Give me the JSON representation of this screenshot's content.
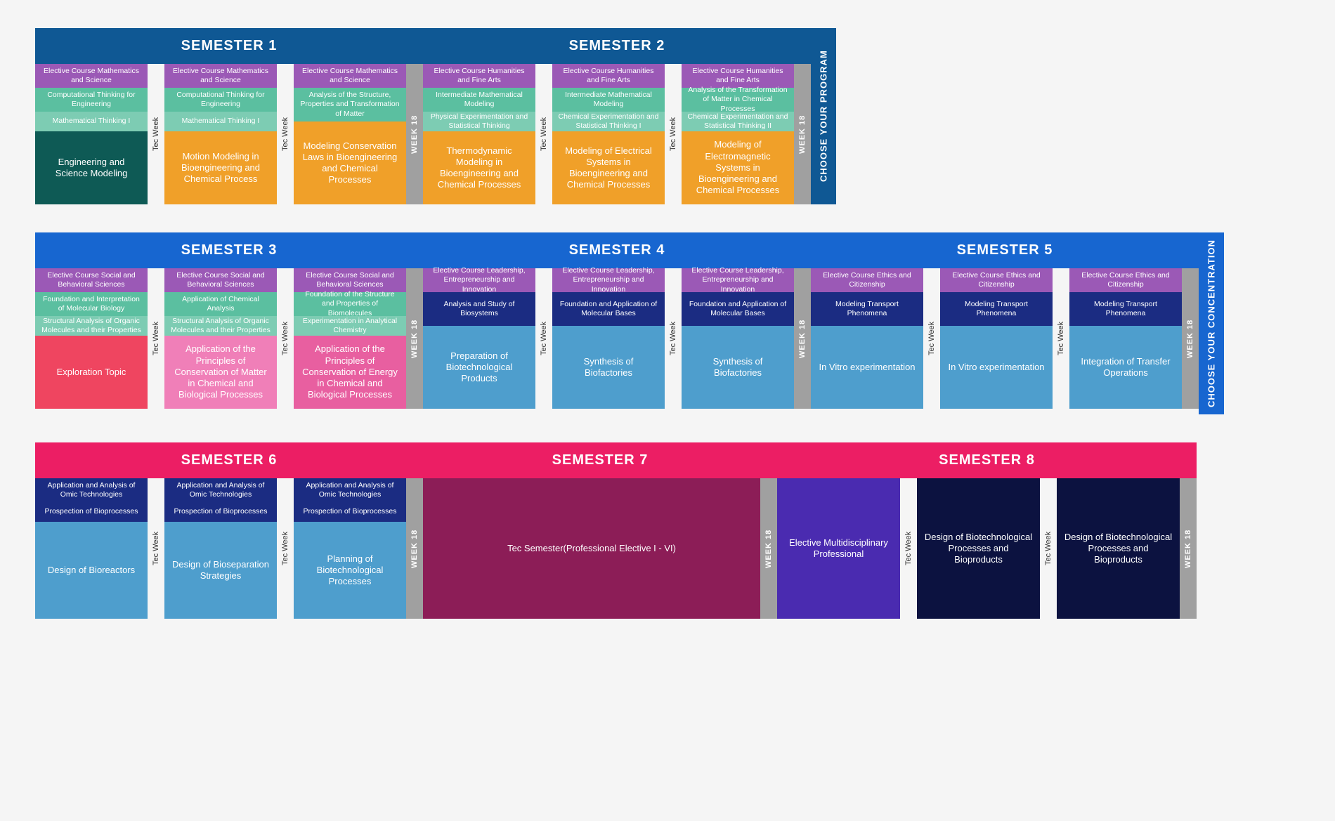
{
  "labels": {
    "tec_week": "Tec Week",
    "week18": "WEEK 18"
  },
  "colors": {
    "bg": "#f5f5f5",
    "grey_week18": "#a0a0a0",
    "row1_header": "#0f5894",
    "row1_side": "#0f5894",
    "row2_header": "#1766d0",
    "row2_side": "#1766d0",
    "row3_header": "#ec1e64",
    "purple": "#9b59b6",
    "teal": "#5bbfa0",
    "teal_light": "#7dccb3",
    "dark_teal": "#0e5a55",
    "orange": "#f0a029",
    "navy": "#1b2c82",
    "skyblue": "#4e9ecd",
    "pink_dark": "#e85fa0",
    "pink_light": "#f07fb8",
    "red": "#ef4560",
    "maroon": "#8c1d57",
    "indigo": "#4a2bb0",
    "navy_dark": "#0c1240"
  },
  "row1": {
    "side": "CHOOSE YOUR PROGRAM",
    "semesters": [
      {
        "title": "SEMESTER 1",
        "periods": [
          {
            "blocks": [
              {
                "t": "Elective Course Mathematics and Science",
                "c": "purple",
                "h": "med"
              },
              {
                "t": "Computational Thinking for Engineering",
                "c": "teal",
                "h": "med"
              },
              {
                "t": "Mathematical Thinking I",
                "c": "teal_light",
                "h": "sm"
              },
              {
                "t": "Engineering and Science Modeling",
                "c": "dark_teal",
                "h": "big"
              }
            ]
          },
          {
            "blocks": [
              {
                "t": "Elective Course Mathematics and Science",
                "c": "purple",
                "h": "med"
              },
              {
                "t": "Computational Thinking for Engineering",
                "c": "teal",
                "h": "med"
              },
              {
                "t": "Mathematical Thinking I",
                "c": "teal_light",
                "h": "sm"
              },
              {
                "t": "Motion Modeling in Bioengineering and Chemical Process",
                "c": "orange",
                "h": "big"
              }
            ]
          },
          {
            "blocks": [
              {
                "t": "Elective Course Mathematics and Science",
                "c": "purple",
                "h": "med"
              },
              {
                "t": "Analysis of the Structure, Properties and Transformation of Matter",
                "c": "teal",
                "h": "med2"
              },
              {
                "t": "Modeling Conservation Laws in Bioengineering and Chemical Processes",
                "c": "orange",
                "h": "big"
              }
            ]
          }
        ]
      },
      {
        "title": "SEMESTER 2",
        "periods": [
          {
            "blocks": [
              {
                "t": "Elective Course Humanities and Fine Arts",
                "c": "purple",
                "h": "med"
              },
              {
                "t": "Intermediate Mathematical Modeling",
                "c": "teal",
                "h": "med"
              },
              {
                "t": "Physical Experimentation and Statistical Thinking",
                "c": "teal_light",
                "h": "sm"
              },
              {
                "t": "Thermodynamic Modeling in Bioengineering and Chemical Processes",
                "c": "orange",
                "h": "big"
              }
            ]
          },
          {
            "blocks": [
              {
                "t": "Elective Course Humanities and Fine Arts",
                "c": "purple",
                "h": "med"
              },
              {
                "t": "Intermediate Mathematical Modeling",
                "c": "teal",
                "h": "med"
              },
              {
                "t": "Chemical Experimentation and Statistical Thinking I",
                "c": "teal_light",
                "h": "sm"
              },
              {
                "t": "Modeling of Electrical Systems in Bioengineering and Chemical Processes",
                "c": "orange",
                "h": "big"
              }
            ]
          },
          {
            "blocks": [
              {
                "t": "Elective Course Humanities and Fine Arts",
                "c": "purple",
                "h": "med"
              },
              {
                "t": "Analysis of the Transformation of Matter in Chemical Processes",
                "c": "teal",
                "h": "med"
              },
              {
                "t": "Chemical Experimentation and Statistical Thinking II",
                "c": "teal_light",
                "h": "sm"
              },
              {
                "t": "Modeling of Electromagnetic Systems in Bioengineering and Chemical Processes",
                "c": "orange",
                "h": "big"
              }
            ]
          }
        ]
      }
    ]
  },
  "row2": {
    "side": "CHOOSE YOUR CONCENTRATION",
    "semesters": [
      {
        "title": "SEMESTER 3",
        "periods": [
          {
            "blocks": [
              {
                "t": "Elective Course Social and Behavioral Sciences",
                "c": "purple",
                "h": "med"
              },
              {
                "t": "Foundation and Interpretation of Molecular Biology",
                "c": "teal",
                "h": "med"
              },
              {
                "t": "Structural Analysis of Organic Molecules and their Properties",
                "c": "teal_light",
                "h": "sm"
              },
              {
                "t": "Exploration Topic",
                "c": "red",
                "h": "big"
              }
            ]
          },
          {
            "blocks": [
              {
                "t": "Elective Course Social and Behavioral Sciences",
                "c": "purple",
                "h": "med"
              },
              {
                "t": "Application of Chemical Analysis",
                "c": "teal",
                "h": "med"
              },
              {
                "t": "Structural Analysis of Organic Molecules and their Properties",
                "c": "teal_light",
                "h": "sm"
              },
              {
                "t": "Application of the Principles of Conservation of Matter in Chemical and Biological Processes",
                "c": "pink_light",
                "h": "big"
              }
            ]
          },
          {
            "blocks": [
              {
                "t": "Elective Course Social and Behavioral Sciences",
                "c": "purple",
                "h": "med"
              },
              {
                "t": "Foundation of the Structure and Properties of Biomolecules",
                "c": "teal",
                "h": "med"
              },
              {
                "t": "Experimentation in Analytical Chemistry",
                "c": "teal_light",
                "h": "sm"
              },
              {
                "t": "Application of the Principles of Conservation of Energy in Chemical and Biological Processes",
                "c": "pink_dark",
                "h": "big"
              }
            ]
          }
        ]
      },
      {
        "title": "SEMESTER 4",
        "periods": [
          {
            "blocks": [
              {
                "t": "Elective Course Leadership, Entrepreneurship and Innovation",
                "c": "purple",
                "h": "med"
              },
              {
                "t": "Analysis and Study of Biosystems",
                "c": "navy",
                "h": "med2"
              },
              {
                "t": "Preparation of Biotechnological Products",
                "c": "skyblue",
                "h": "big"
              }
            ]
          },
          {
            "blocks": [
              {
                "t": "Elective Course Leadership, Entrepreneurship and Innovation",
                "c": "purple",
                "h": "med"
              },
              {
                "t": "Foundation and Application of Molecular Bases",
                "c": "navy",
                "h": "med2"
              },
              {
                "t": "Synthesis of Biofactories",
                "c": "skyblue",
                "h": "big"
              }
            ]
          },
          {
            "blocks": [
              {
                "t": "Elective Course Leadership, Entrepreneurship and Innovation",
                "c": "purple",
                "h": "med"
              },
              {
                "t": "Foundation and Application of Molecular Bases",
                "c": "navy",
                "h": "med2"
              },
              {
                "t": "Synthesis of Biofactories",
                "c": "skyblue",
                "h": "big"
              }
            ]
          }
        ]
      },
      {
        "title": "SEMESTER 5",
        "periods": [
          {
            "blocks": [
              {
                "t": "Elective Course Ethics and Citizenship",
                "c": "purple",
                "h": "med"
              },
              {
                "t": "Modeling Transport Phenomena",
                "c": "navy",
                "h": "med2"
              },
              {
                "t": "In Vitro experimentation",
                "c": "skyblue",
                "h": "big"
              }
            ]
          },
          {
            "blocks": [
              {
                "t": "Elective Course Ethics and Citizenship",
                "c": "purple",
                "h": "med"
              },
              {
                "t": "Modeling Transport Phenomena",
                "c": "navy",
                "h": "med2"
              },
              {
                "t": "In Vitro experimentation",
                "c": "skyblue",
                "h": "big"
              }
            ]
          },
          {
            "blocks": [
              {
                "t": "Elective Course Ethics and Citizenship",
                "c": "purple",
                "h": "med"
              },
              {
                "t": "Modeling Transport Phenomena",
                "c": "navy",
                "h": "med2"
              },
              {
                "t": "Integration of Transfer Operations",
                "c": "skyblue",
                "h": "big"
              }
            ]
          }
        ]
      }
    ]
  },
  "row3": {
    "semesters": [
      {
        "title": "SEMESTER 6",
        "periods": [
          {
            "blocks": [
              {
                "t": "Application and Analysis of Omic Technologies",
                "c": "navy",
                "h": "med"
              },
              {
                "t": "Prospection of Bioprocesses",
                "c": "navy",
                "h": "sm"
              },
              {
                "t": "Design of Bioreactors",
                "c": "skyblue",
                "h": "big"
              }
            ]
          },
          {
            "blocks": [
              {
                "t": "Application and Analysis of Omic Technologies",
                "c": "navy",
                "h": "med"
              },
              {
                "t": "Prospection of Bioprocesses",
                "c": "navy",
                "h": "sm"
              },
              {
                "t": "Design of Bioseparation Strategies",
                "c": "skyblue",
                "h": "big"
              }
            ]
          },
          {
            "blocks": [
              {
                "t": "Application and Analysis of Omic Technologies",
                "c": "navy",
                "h": "med"
              },
              {
                "t": "Prospection of Bioprocesses",
                "c": "navy",
                "h": "sm"
              },
              {
                "t": "Planning of Biotechnological Processes",
                "c": "skyblue",
                "h": "big"
              }
            ]
          }
        ]
      },
      {
        "title": "SEMESTER 7",
        "periods": [
          {
            "wide": true,
            "blocks": [
              {
                "t": "Tec Semester\n(Professional Elective I - VI)",
                "c": "maroon",
                "h": "big"
              }
            ]
          }
        ]
      },
      {
        "title": "SEMESTER 8",
        "periods": [
          {
            "blocks": [
              {
                "t": "Elective Multidisciplinary Professional",
                "c": "indigo",
                "h": "big"
              }
            ]
          },
          {
            "blocks": [
              {
                "t": "Design of Biotechnological Processes and Bioproducts",
                "c": "navy_dark",
                "h": "big"
              }
            ]
          },
          {
            "blocks": [
              {
                "t": "Design of Biotechnological Processes and Bioproducts",
                "c": "navy_dark",
                "h": "big"
              }
            ]
          }
        ]
      }
    ]
  }
}
